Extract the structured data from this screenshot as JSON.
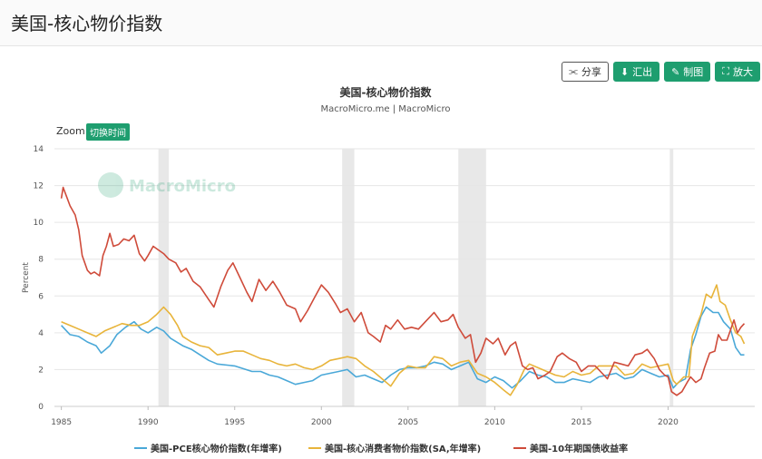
{
  "page": {
    "title": "美国-核心物价指数"
  },
  "toolbar": {
    "share_label": "分享",
    "export_label": "汇出",
    "draw_label": "制图",
    "zoom_label": "放大"
  },
  "zoom": {
    "label": "Zoom",
    "toggle_label": "切换时间"
  },
  "chart_data": {
    "type": "line",
    "title": "美国-核心物价指数",
    "subtitle": "MacroMicro.me | MacroMicro",
    "watermark": "MacroMicro",
    "ylabel": "Percent",
    "xlabel": "",
    "xlim": [
      1984.6,
      2025.0
    ],
    "ylim": [
      0,
      14
    ],
    "x_ticks": [
      "1985",
      "1990",
      "1995",
      "2000",
      "2005",
      "2010",
      "2015",
      "2020"
    ],
    "y_ticks": [
      "0",
      "2",
      "4",
      "6",
      "8",
      "10",
      "12",
      "14"
    ],
    "grid": true,
    "legend_position": "bottom",
    "recessions": [
      [
        1990.6,
        1991.2
      ],
      [
        2001.2,
        2001.9
      ],
      [
        2007.9,
        2009.5
      ],
      [
        2020.1,
        2020.3
      ]
    ],
    "series": [
      {
        "name": "美国-PCE核心物价指数(年增率)",
        "color": "#4aa8d8",
        "points": [
          [
            1985.0,
            4.4
          ],
          [
            1985.5,
            3.9
          ],
          [
            1986.0,
            3.8
          ],
          [
            1986.5,
            3.5
          ],
          [
            1987.0,
            3.3
          ],
          [
            1987.3,
            2.9
          ],
          [
            1987.8,
            3.3
          ],
          [
            1988.2,
            3.9
          ],
          [
            1988.7,
            4.3
          ],
          [
            1989.2,
            4.6
          ],
          [
            1989.6,
            4.2
          ],
          [
            1990.0,
            4.0
          ],
          [
            1990.5,
            4.3
          ],
          [
            1990.9,
            4.1
          ],
          [
            1991.3,
            3.7
          ],
          [
            1992.0,
            3.3
          ],
          [
            1992.5,
            3.1
          ],
          [
            1993.0,
            2.8
          ],
          [
            1993.5,
            2.5
          ],
          [
            1994.0,
            2.3
          ],
          [
            1995.0,
            2.2
          ],
          [
            1996.0,
            1.9
          ],
          [
            1996.5,
            1.9
          ],
          [
            1997.0,
            1.7
          ],
          [
            1997.5,
            1.6
          ],
          [
            1998.0,
            1.4
          ],
          [
            1998.5,
            1.2
          ],
          [
            1999.0,
            1.3
          ],
          [
            1999.5,
            1.4
          ],
          [
            2000.0,
            1.7
          ],
          [
            2000.5,
            1.8
          ],
          [
            2001.0,
            1.9
          ],
          [
            2001.5,
            2.0
          ],
          [
            2002.0,
            1.6
          ],
          [
            2002.5,
            1.7
          ],
          [
            2003.0,
            1.5
          ],
          [
            2003.5,
            1.3
          ],
          [
            2004.0,
            1.7
          ],
          [
            2004.5,
            2.0
          ],
          [
            2005.0,
            2.1
          ],
          [
            2005.5,
            2.1
          ],
          [
            2006.0,
            2.2
          ],
          [
            2006.5,
            2.4
          ],
          [
            2007.0,
            2.3
          ],
          [
            2007.5,
            2.0
          ],
          [
            2008.0,
            2.2
          ],
          [
            2008.5,
            2.4
          ],
          [
            2009.0,
            1.5
          ],
          [
            2009.5,
            1.3
          ],
          [
            2010.0,
            1.6
          ],
          [
            2010.5,
            1.4
          ],
          [
            2011.0,
            1.0
          ],
          [
            2011.5,
            1.4
          ],
          [
            2012.0,
            1.9
          ],
          [
            2012.5,
            1.7
          ],
          [
            2013.0,
            1.6
          ],
          [
            2013.5,
            1.3
          ],
          [
            2014.0,
            1.3
          ],
          [
            2014.5,
            1.5
          ],
          [
            2015.0,
            1.4
          ],
          [
            2015.5,
            1.3
          ],
          [
            2016.0,
            1.6
          ],
          [
            2016.5,
            1.7
          ],
          [
            2017.0,
            1.8
          ],
          [
            2017.5,
            1.5
          ],
          [
            2018.0,
            1.6
          ],
          [
            2018.5,
            2.0
          ],
          [
            2019.0,
            1.8
          ],
          [
            2019.5,
            1.6
          ],
          [
            2020.0,
            1.7
          ],
          [
            2020.3,
            1.0
          ],
          [
            2020.6,
            1.3
          ],
          [
            2021.0,
            1.5
          ],
          [
            2021.3,
            3.1
          ],
          [
            2021.6,
            3.9
          ],
          [
            2021.9,
            4.9
          ],
          [
            2022.2,
            5.4
          ],
          [
            2022.6,
            5.1
          ],
          [
            2022.9,
            5.1
          ],
          [
            2023.2,
            4.6
          ],
          [
            2023.6,
            4.2
          ],
          [
            2023.9,
            3.2
          ],
          [
            2024.2,
            2.8
          ],
          [
            2024.4,
            2.8
          ]
        ]
      },
      {
        "name": "美国-核心消费者物价指数(SA,年增率)",
        "color": "#e8b43a",
        "points": [
          [
            1985.0,
            4.6
          ],
          [
            1985.5,
            4.4
          ],
          [
            1986.0,
            4.2
          ],
          [
            1986.5,
            4.0
          ],
          [
            1987.0,
            3.8
          ],
          [
            1987.5,
            4.1
          ],
          [
            1988.0,
            4.3
          ],
          [
            1988.5,
            4.5
          ],
          [
            1989.0,
            4.4
          ],
          [
            1989.5,
            4.4
          ],
          [
            1990.0,
            4.6
          ],
          [
            1990.5,
            5.0
          ],
          [
            1990.9,
            5.4
          ],
          [
            1991.3,
            5.0
          ],
          [
            1991.7,
            4.4
          ],
          [
            1992.0,
            3.8
          ],
          [
            1992.5,
            3.5
          ],
          [
            1993.0,
            3.3
          ],
          [
            1993.5,
            3.2
          ],
          [
            1994.0,
            2.8
          ],
          [
            1994.5,
            2.9
          ],
          [
            1995.0,
            3.0
          ],
          [
            1995.5,
            3.0
          ],
          [
            1996.0,
            2.8
          ],
          [
            1996.5,
            2.6
          ],
          [
            1997.0,
            2.5
          ],
          [
            1997.5,
            2.3
          ],
          [
            1998.0,
            2.2
          ],
          [
            1998.5,
            2.3
          ],
          [
            1999.0,
            2.1
          ],
          [
            1999.5,
            2.0
          ],
          [
            2000.0,
            2.2
          ],
          [
            2000.5,
            2.5
          ],
          [
            2001.0,
            2.6
          ],
          [
            2001.5,
            2.7
          ],
          [
            2002.0,
            2.6
          ],
          [
            2002.5,
            2.2
          ],
          [
            2003.0,
            1.9
          ],
          [
            2003.5,
            1.5
          ],
          [
            2004.0,
            1.1
          ],
          [
            2004.5,
            1.8
          ],
          [
            2005.0,
            2.2
          ],
          [
            2005.5,
            2.1
          ],
          [
            2006.0,
            2.1
          ],
          [
            2006.5,
            2.7
          ],
          [
            2007.0,
            2.6
          ],
          [
            2007.5,
            2.2
          ],
          [
            2008.0,
            2.4
          ],
          [
            2008.5,
            2.5
          ],
          [
            2009.0,
            1.8
          ],
          [
            2009.5,
            1.6
          ],
          [
            2010.0,
            1.3
          ],
          [
            2010.5,
            0.9
          ],
          [
            2010.9,
            0.6
          ],
          [
            2011.3,
            1.2
          ],
          [
            2011.7,
            2.0
          ],
          [
            2012.0,
            2.3
          ],
          [
            2012.5,
            2.1
          ],
          [
            2013.0,
            1.9
          ],
          [
            2013.5,
            1.7
          ],
          [
            2014.0,
            1.6
          ],
          [
            2014.5,
            1.9
          ],
          [
            2015.0,
            1.7
          ],
          [
            2015.5,
            1.8
          ],
          [
            2016.0,
            2.2
          ],
          [
            2016.5,
            2.2
          ],
          [
            2017.0,
            2.2
          ],
          [
            2017.5,
            1.7
          ],
          [
            2018.0,
            1.8
          ],
          [
            2018.5,
            2.3
          ],
          [
            2019.0,
            2.1
          ],
          [
            2019.5,
            2.2
          ],
          [
            2020.0,
            2.3
          ],
          [
            2020.3,
            1.4
          ],
          [
            2020.5,
            1.2
          ],
          [
            2020.9,
            1.6
          ],
          [
            2021.2,
            1.6
          ],
          [
            2021.4,
            3.8
          ],
          [
            2021.6,
            4.3
          ],
          [
            2021.9,
            5.0
          ],
          [
            2022.2,
            6.1
          ],
          [
            2022.5,
            5.9
          ],
          [
            2022.8,
            6.6
          ],
          [
            2023.0,
            5.7
          ],
          [
            2023.3,
            5.5
          ],
          [
            2023.6,
            4.7
          ],
          [
            2023.9,
            4.0
          ],
          [
            2024.2,
            3.8
          ],
          [
            2024.4,
            3.4
          ]
        ]
      },
      {
        "name": "美国-10年期国债收益率",
        "color": "#cf4b3a",
        "points": [
          [
            1985.0,
            11.3
          ],
          [
            1985.1,
            11.9
          ],
          [
            1985.3,
            11.4
          ],
          [
            1985.5,
            10.9
          ],
          [
            1985.8,
            10.4
          ],
          [
            1986.0,
            9.6
          ],
          [
            1986.2,
            8.2
          ],
          [
            1986.5,
            7.4
          ],
          [
            1986.7,
            7.2
          ],
          [
            1986.9,
            7.3
          ],
          [
            1987.2,
            7.1
          ],
          [
            1987.4,
            8.2
          ],
          [
            1987.6,
            8.7
          ],
          [
            1987.8,
            9.4
          ],
          [
            1988.0,
            8.7
          ],
          [
            1988.3,
            8.8
          ],
          [
            1988.6,
            9.1
          ],
          [
            1988.9,
            9.0
          ],
          [
            1989.2,
            9.3
          ],
          [
            1989.5,
            8.3
          ],
          [
            1989.8,
            7.9
          ],
          [
            1990.0,
            8.2
          ],
          [
            1990.3,
            8.7
          ],
          [
            1990.6,
            8.5
          ],
          [
            1990.9,
            8.3
          ],
          [
            1991.2,
            8.0
          ],
          [
            1991.6,
            7.8
          ],
          [
            1991.9,
            7.3
          ],
          [
            1992.2,
            7.5
          ],
          [
            1992.6,
            6.8
          ],
          [
            1993.0,
            6.5
          ],
          [
            1993.5,
            5.8
          ],
          [
            1993.8,
            5.4
          ],
          [
            1994.2,
            6.5
          ],
          [
            1994.6,
            7.4
          ],
          [
            1994.9,
            7.8
          ],
          [
            1995.3,
            7.0
          ],
          [
            1995.7,
            6.2
          ],
          [
            1996.0,
            5.7
          ],
          [
            1996.4,
            6.9
          ],
          [
            1996.8,
            6.3
          ],
          [
            1997.2,
            6.8
          ],
          [
            1997.6,
            6.2
          ],
          [
            1998.0,
            5.5
          ],
          [
            1998.5,
            5.3
          ],
          [
            1998.8,
            4.6
          ],
          [
            1999.2,
            5.2
          ],
          [
            1999.6,
            5.9
          ],
          [
            2000.0,
            6.6
          ],
          [
            2000.4,
            6.2
          ],
          [
            2000.8,
            5.6
          ],
          [
            2001.1,
            5.1
          ],
          [
            2001.5,
            5.3
          ],
          [
            2001.9,
            4.6
          ],
          [
            2002.3,
            5.1
          ],
          [
            2002.7,
            4.0
          ],
          [
            2003.0,
            3.8
          ],
          [
            2003.4,
            3.5
          ],
          [
            2003.7,
            4.4
          ],
          [
            2004.0,
            4.2
          ],
          [
            2004.4,
            4.7
          ],
          [
            2004.8,
            4.2
          ],
          [
            2005.2,
            4.3
          ],
          [
            2005.6,
            4.2
          ],
          [
            2006.0,
            4.6
          ],
          [
            2006.5,
            5.1
          ],
          [
            2006.9,
            4.6
          ],
          [
            2007.3,
            4.7
          ],
          [
            2007.6,
            5.0
          ],
          [
            2007.9,
            4.3
          ],
          [
            2008.3,
            3.7
          ],
          [
            2008.6,
            3.9
          ],
          [
            2008.9,
            2.4
          ],
          [
            2009.2,
            2.9
          ],
          [
            2009.5,
            3.7
          ],
          [
            2009.9,
            3.4
          ],
          [
            2010.2,
            3.7
          ],
          [
            2010.6,
            2.8
          ],
          [
            2010.9,
            3.3
          ],
          [
            2011.2,
            3.5
          ],
          [
            2011.6,
            2.2
          ],
          [
            2011.9,
            2.0
          ],
          [
            2012.2,
            2.1
          ],
          [
            2012.5,
            1.5
          ],
          [
            2012.9,
            1.7
          ],
          [
            2013.2,
            1.9
          ],
          [
            2013.6,
            2.7
          ],
          [
            2013.9,
            2.9
          ],
          [
            2014.3,
            2.6
          ],
          [
            2014.7,
            2.4
          ],
          [
            2015.0,
            1.9
          ],
          [
            2015.4,
            2.2
          ],
          [
            2015.8,
            2.2
          ],
          [
            2016.2,
            1.8
          ],
          [
            2016.5,
            1.5
          ],
          [
            2016.9,
            2.4
          ],
          [
            2017.3,
            2.3
          ],
          [
            2017.7,
            2.2
          ],
          [
            2018.1,
            2.8
          ],
          [
            2018.5,
            2.9
          ],
          [
            2018.8,
            3.1
          ],
          [
            2019.2,
            2.6
          ],
          [
            2019.5,
            2.0
          ],
          [
            2019.8,
            1.7
          ],
          [
            2020.0,
            1.6
          ],
          [
            2020.2,
            0.8
          ],
          [
            2020.5,
            0.6
          ],
          [
            2020.8,
            0.8
          ],
          [
            2021.1,
            1.3
          ],
          [
            2021.3,
            1.6
          ],
          [
            2021.6,
            1.3
          ],
          [
            2021.9,
            1.5
          ],
          [
            2022.1,
            2.1
          ],
          [
            2022.4,
            2.9
          ],
          [
            2022.7,
            3.0
          ],
          [
            2022.9,
            3.9
          ],
          [
            2023.1,
            3.6
          ],
          [
            2023.4,
            3.6
          ],
          [
            2023.8,
            4.7
          ],
          [
            2024.0,
            4.0
          ],
          [
            2024.2,
            4.3
          ],
          [
            2024.4,
            4.5
          ]
        ]
      }
    ]
  }
}
